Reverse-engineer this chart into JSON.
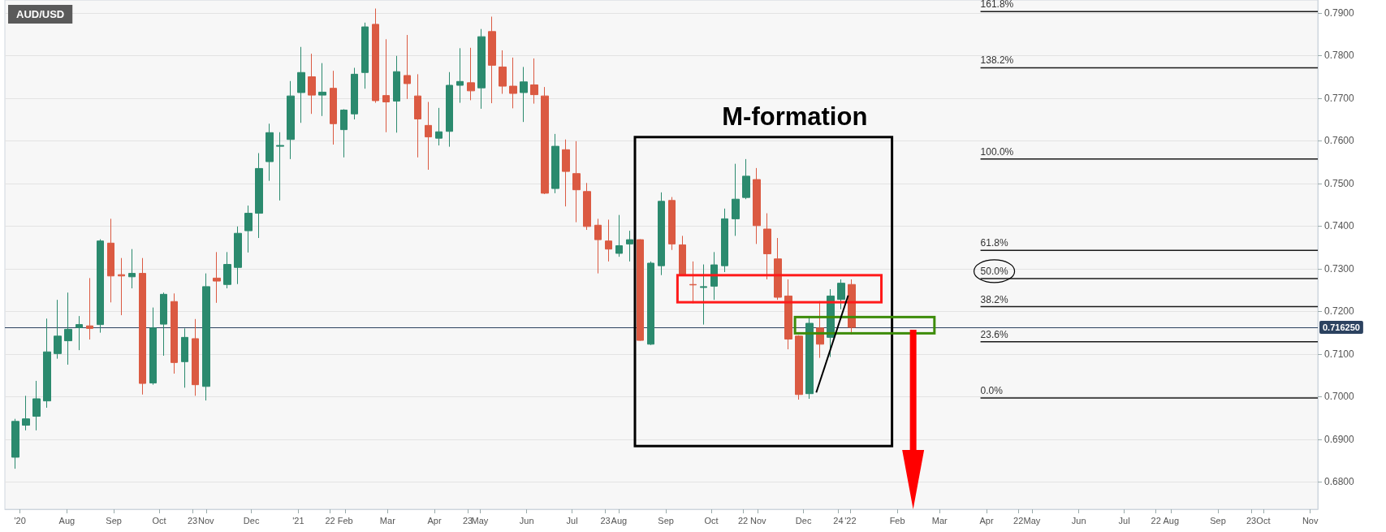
{
  "chart_data": {
    "type": "candlestick",
    "title": "AUD/USD",
    "annotations": [
      "M-formation"
    ],
    "xlim": [
      "2020-06-21",
      "2022-11-06"
    ],
    "xticks": [
      {
        "value": "2020-07-01",
        "label": "'20"
      },
      {
        "value": "2020-08-01",
        "label": "Aug"
      },
      {
        "value": "2020-09-01",
        "label": "Sep"
      },
      {
        "value": "2020-10-01",
        "label": "Oct"
      },
      {
        "value": "2020-10-23",
        "label": "23"
      },
      {
        "value": "2020-11-01",
        "label": "Nov"
      },
      {
        "value": "2020-12-01",
        "label": "Dec"
      },
      {
        "value": "2021-01-01",
        "label": "'21"
      },
      {
        "value": "2021-01-22",
        "label": "22"
      },
      {
        "value": "2021-02-01",
        "label": "Feb"
      },
      {
        "value": "2021-03-01",
        "label": "Mar"
      },
      {
        "value": "2021-04-01",
        "label": "Apr"
      },
      {
        "value": "2021-04-23",
        "label": "23"
      },
      {
        "value": "2021-05-01",
        "label": "May"
      },
      {
        "value": "2021-06-01",
        "label": "Jun"
      },
      {
        "value": "2021-07-01",
        "label": "Jul"
      },
      {
        "value": "2021-07-23",
        "label": "23"
      },
      {
        "value": "2021-08-01",
        "label": "Aug"
      },
      {
        "value": "2021-09-01",
        "label": "Sep"
      },
      {
        "value": "2021-10-01",
        "label": "Oct"
      },
      {
        "value": "2021-10-22",
        "label": "22"
      },
      {
        "value": "2021-11-01",
        "label": "Nov"
      },
      {
        "value": "2021-12-01",
        "label": "Dec"
      },
      {
        "value": "2021-12-24",
        "label": "24"
      },
      {
        "value": "2022-01-01",
        "label": "'22"
      },
      {
        "value": "2022-02-01",
        "label": "Feb"
      },
      {
        "value": "2022-03-01",
        "label": "Mar"
      },
      {
        "value": "2022-04-01",
        "label": "Apr"
      },
      {
        "value": "2022-04-22",
        "label": "22"
      },
      {
        "value": "2022-05-01",
        "label": "May"
      },
      {
        "value": "2022-06-01",
        "label": "Jun"
      },
      {
        "value": "2022-07-01",
        "label": "Jul"
      },
      {
        "value": "2022-07-22",
        "label": "22"
      },
      {
        "value": "2022-08-01",
        "label": "Aug"
      },
      {
        "value": "2022-09-01",
        "label": "Sep"
      },
      {
        "value": "2022-09-23",
        "label": "23"
      },
      {
        "value": "2022-10-01",
        "label": "Oct"
      },
      {
        "value": "2022-11-01",
        "label": "Nov"
      }
    ],
    "ylim": [
      0.6736,
      0.793
    ],
    "yticks": [
      {
        "value": 0.68,
        "label": "0.6800"
      },
      {
        "value": 0.69,
        "label": "0.6900"
      },
      {
        "value": 0.7,
        "label": "0.7000"
      },
      {
        "value": 0.71,
        "label": "0.7100"
      },
      {
        "value": 0.72,
        "label": "0.7200"
      },
      {
        "value": 0.73,
        "label": "0.7300"
      },
      {
        "value": 0.74,
        "label": "0.7400"
      },
      {
        "value": 0.75,
        "label": "0.7500"
      },
      {
        "value": 0.76,
        "label": "0.7600"
      },
      {
        "value": 0.77,
        "label": "0.7700"
      },
      {
        "value": 0.78,
        "label": "0.7800"
      },
      {
        "value": 0.79,
        "label": "0.7900"
      }
    ],
    "grid": "y",
    "ref_lines": [
      {
        "axis": "y",
        "value": 0.71625,
        "label": "0.716250",
        "color": "#2c4260"
      }
    ],
    "series": [
      {
        "type": "candlestick",
        "x": [
          "2020-06-28",
          "2020-07-05",
          "2020-07-12",
          "2020-07-19",
          "2020-07-26",
          "2020-08-02",
          "2020-08-09",
          "2020-08-16",
          "2020-08-23",
          "2020-08-30",
          "2020-09-06",
          "2020-09-13",
          "2020-09-20",
          "2020-09-27",
          "2020-10-04",
          "2020-10-11",
          "2020-10-18",
          "2020-10-25",
          "2020-11-01",
          "2020-11-08",
          "2020-11-15",
          "2020-11-22",
          "2020-11-29",
          "2020-12-06",
          "2020-12-13",
          "2020-12-20",
          "2020-12-27",
          "2021-01-03",
          "2021-01-10",
          "2021-01-17",
          "2021-01-24",
          "2021-01-31",
          "2021-02-07",
          "2021-02-14",
          "2021-02-21",
          "2021-02-28",
          "2021-03-07",
          "2021-03-14",
          "2021-03-21",
          "2021-03-28",
          "2021-04-04",
          "2021-04-11",
          "2021-04-18",
          "2021-04-25",
          "2021-05-02",
          "2021-05-09",
          "2021-05-16",
          "2021-05-23",
          "2021-05-30",
          "2021-06-06",
          "2021-06-13",
          "2021-06-20",
          "2021-06-27",
          "2021-07-04",
          "2021-07-11",
          "2021-07-18",
          "2021-07-25",
          "2021-08-01",
          "2021-08-08",
          "2021-08-15",
          "2021-08-22",
          "2021-08-29",
          "2021-09-05",
          "2021-09-12",
          "2021-09-19",
          "2021-09-26",
          "2021-10-03",
          "2021-10-10",
          "2021-10-17",
          "2021-10-24",
          "2021-10-31",
          "2021-11-07",
          "2021-11-14",
          "2021-11-21",
          "2021-11-28",
          "2021-12-05",
          "2021-12-12",
          "2021-12-19",
          "2021-12-26",
          "2022-01-02"
        ],
        "ohlc": [
          [
            0.6858,
            0.6948,
            0.6831,
            0.6942
          ],
          [
            0.6933,
            0.7002,
            0.6921,
            0.6948
          ],
          [
            0.6954,
            0.7037,
            0.6921,
            0.6995
          ],
          [
            0.699,
            0.7183,
            0.6974,
            0.7105
          ],
          [
            0.7101,
            0.7227,
            0.7089,
            0.7142
          ],
          [
            0.7131,
            0.7244,
            0.7075,
            0.7158
          ],
          [
            0.7162,
            0.7189,
            0.7109,
            0.7169
          ],
          [
            0.7166,
            0.7278,
            0.7134,
            0.716
          ],
          [
            0.7169,
            0.7369,
            0.715,
            0.7365
          ],
          [
            0.736,
            0.7417,
            0.7221,
            0.7283
          ],
          [
            0.7286,
            0.7325,
            0.7191,
            0.7283
          ],
          [
            0.7281,
            0.7346,
            0.7254,
            0.7289
          ],
          [
            0.7289,
            0.7325,
            0.7005,
            0.7031
          ],
          [
            0.7032,
            0.7209,
            0.7028,
            0.7161
          ],
          [
            0.717,
            0.7244,
            0.7096,
            0.724
          ],
          [
            0.7223,
            0.7242,
            0.7054,
            0.708
          ],
          [
            0.7082,
            0.716,
            0.7021,
            0.7139
          ],
          [
            0.7136,
            0.7182,
            0.7002,
            0.7028
          ],
          [
            0.7024,
            0.7289,
            0.6991,
            0.7258
          ],
          [
            0.7278,
            0.7339,
            0.722,
            0.7271
          ],
          [
            0.7263,
            0.7339,
            0.7254,
            0.731
          ],
          [
            0.7303,
            0.7399,
            0.7264,
            0.7383
          ],
          [
            0.7389,
            0.7448,
            0.7338,
            0.743
          ],
          [
            0.743,
            0.7571,
            0.7372,
            0.7535
          ],
          [
            0.7551,
            0.764,
            0.7506,
            0.7619
          ],
          [
            0.7587,
            0.762,
            0.746,
            0.7589
          ],
          [
            0.7603,
            0.774,
            0.7557,
            0.7705
          ],
          [
            0.7713,
            0.782,
            0.7642,
            0.776
          ],
          [
            0.775,
            0.7804,
            0.7663,
            0.7707
          ],
          [
            0.7707,
            0.7782,
            0.7658,
            0.7714
          ],
          [
            0.7723,
            0.7764,
            0.7591,
            0.764
          ],
          [
            0.7626,
            0.7674,
            0.7561,
            0.7672
          ],
          [
            0.7663,
            0.7771,
            0.765,
            0.7756
          ],
          [
            0.776,
            0.7877,
            0.7722,
            0.7867
          ],
          [
            0.7873,
            0.791,
            0.7689,
            0.7694
          ],
          [
            0.7706,
            0.7838,
            0.762,
            0.7691
          ],
          [
            0.7693,
            0.7799,
            0.7619,
            0.7762
          ],
          [
            0.7753,
            0.7848,
            0.7698,
            0.7734
          ],
          [
            0.7705,
            0.7756,
            0.7561,
            0.7651
          ],
          [
            0.7636,
            0.7691,
            0.7532,
            0.7609
          ],
          [
            0.7606,
            0.7677,
            0.7589,
            0.7621
          ],
          [
            0.7622,
            0.7761,
            0.7586,
            0.773
          ],
          [
            0.773,
            0.7817,
            0.7689,
            0.7739
          ],
          [
            0.7736,
            0.7818,
            0.7695,
            0.7717
          ],
          [
            0.7724,
            0.7862,
            0.7675,
            0.7844
          ],
          [
            0.7856,
            0.7891,
            0.7688,
            0.7777
          ],
          [
            0.7773,
            0.7812,
            0.771,
            0.7728
          ],
          [
            0.7728,
            0.7795,
            0.7676,
            0.7711
          ],
          [
            0.7713,
            0.7773,
            0.7644,
            0.7738
          ],
          [
            0.7731,
            0.7793,
            0.7687,
            0.7708
          ],
          [
            0.7705,
            0.7726,
            0.7475,
            0.7477
          ],
          [
            0.7488,
            0.7616,
            0.7477,
            0.7587
          ],
          [
            0.7579,
            0.7603,
            0.7446,
            0.7528
          ],
          [
            0.7523,
            0.7599,
            0.7409,
            0.7485
          ],
          [
            0.7481,
            0.7501,
            0.7391,
            0.7399
          ],
          [
            0.7402,
            0.7417,
            0.7289,
            0.7368
          ],
          [
            0.7365,
            0.7415,
            0.7317,
            0.7346
          ],
          [
            0.7336,
            0.7426,
            0.7328,
            0.7354
          ],
          [
            0.7358,
            0.7389,
            0.7317,
            0.7368
          ],
          [
            0.7368,
            0.7369,
            0.7131,
            0.7132
          ],
          [
            0.7123,
            0.7317,
            0.7121,
            0.7313
          ],
          [
            0.7307,
            0.7479,
            0.7285,
            0.7458
          ],
          [
            0.746,
            0.7468,
            0.7344,
            0.7358
          ],
          [
            0.7356,
            0.7377,
            0.7285,
            0.7286
          ],
          [
            0.7263,
            0.7317,
            0.7219,
            0.7262
          ],
          [
            0.7256,
            0.731,
            0.7169,
            0.7258
          ],
          [
            0.7259,
            0.7339,
            0.7227,
            0.7309
          ],
          [
            0.7307,
            0.7441,
            0.7292,
            0.7417
          ],
          [
            0.7417,
            0.7546,
            0.7377,
            0.7463
          ],
          [
            0.7467,
            0.7557,
            0.7463,
            0.7517
          ],
          [
            0.7509,
            0.7536,
            0.7358,
            0.7401
          ],
          [
            0.7393,
            0.743,
            0.7275,
            0.7335
          ],
          [
            0.7323,
            0.7372,
            0.7227,
            0.7233
          ],
          [
            0.7236,
            0.7275,
            0.7111,
            0.7135
          ],
          [
            0.7142,
            0.7144,
            0.6993,
            0.7005
          ],
          [
            0.7007,
            0.7187,
            0.6995,
            0.7172
          ],
          [
            0.7161,
            0.7224,
            0.7091,
            0.7123
          ],
          [
            0.7139,
            0.7252,
            0.7093,
            0.7236
          ],
          [
            0.7228,
            0.7275,
            0.7205,
            0.7266
          ],
          [
            0.7263,
            0.7275,
            0.7146,
            0.71625
          ]
        ],
        "colors": [
          "#2b8a6e",
          "#2b8a6e",
          "#2b8a6e",
          "#2b8a6e",
          "#2b8a6e",
          "#2b8a6e",
          "#2b8a6e",
          "#db5a42",
          "#2b8a6e",
          "#db5a42",
          "#db5a42",
          "#2b8a6e",
          "#db5a42",
          "#2b8a6e",
          "#2b8a6e",
          "#db5a42",
          "#2b8a6e",
          "#db5a42",
          "#2b8a6e",
          "#db5a42",
          "#2b8a6e",
          "#2b8a6e",
          "#2b8a6e",
          "#2b8a6e",
          "#2b8a6e",
          "#2b8a6e",
          "#2b8a6e",
          "#2b8a6e",
          "#db5a42",
          "#2b8a6e",
          "#db5a42",
          "#2b8a6e",
          "#2b8a6e",
          "#2b8a6e",
          "#db5a42",
          "#db5a42",
          "#2b8a6e",
          "#db5a42",
          "#db5a42",
          "#db5a42",
          "#2b8a6e",
          "#2b8a6e",
          "#2b8a6e",
          "#db5a42",
          "#2b8a6e",
          "#db5a42",
          "#db5a42",
          "#db5a42",
          "#2b8a6e",
          "#db5a42",
          "#db5a42",
          "#2b8a6e",
          "#db5a42",
          "#db5a42",
          "#db5a42",
          "#db5a42",
          "#db5a42",
          "#2b8a6e",
          "#2b8a6e",
          "#db5a42",
          "#2b8a6e",
          "#2b8a6e",
          "#db5a42",
          "#db5a42",
          "#db5a42",
          "#2b8a6e",
          "#2b8a6e",
          "#2b8a6e",
          "#2b8a6e",
          "#2b8a6e",
          "#db5a42",
          "#db5a42",
          "#db5a42",
          "#db5a42",
          "#db5a42",
          "#2b8a6e",
          "#db5a42",
          "#2b8a6e",
          "#2b8a6e",
          "#db5a42"
        ]
      },
      {
        "type": "line",
        "name": "161.8%",
        "color": "#1a1a1a",
        "x": [
          "2022-03-28",
          "2022-11-06"
        ],
        "values": [
          0.7903,
          0.7903
        ]
      },
      {
        "type": "line",
        "name": "138.2%",
        "color": "#1a1a1a",
        "x": [
          "2022-03-28",
          "2022-11-06"
        ],
        "values": [
          0.7771,
          0.7771
        ]
      },
      {
        "type": "line",
        "name": "100.0%",
        "color": "#1a1a1a",
        "x": [
          "2022-03-28",
          "2022-11-06"
        ],
        "values": [
          0.7557,
          0.7557
        ]
      },
      {
        "type": "line",
        "name": "61.8%",
        "color": "#1a1a1a",
        "x": [
          "2022-03-28",
          "2022-11-06"
        ],
        "values": [
          0.7343,
          0.7343
        ]
      },
      {
        "type": "line",
        "name": "50.0%",
        "color": "#1a1a1a",
        "x": [
          "2022-03-28",
          "2022-11-06"
        ],
        "values": [
          0.7277,
          0.7277
        ]
      },
      {
        "type": "line",
        "name": "38.2%",
        "color": "#1a1a1a",
        "x": [
          "2022-03-28",
          "2022-11-06"
        ],
        "values": [
          0.7211,
          0.7211
        ]
      },
      {
        "type": "line",
        "name": "23.6%",
        "color": "#1a1a1a",
        "x": [
          "2022-03-28",
          "2022-11-06"
        ],
        "values": [
          0.7129,
          0.7129
        ]
      },
      {
        "type": "line",
        "name": "0.0%",
        "color": "#1a1a1a",
        "x": [
          "2022-03-28",
          "2022-11-06"
        ],
        "values": [
          0.6997,
          0.6997
        ]
      }
    ]
  }
}
